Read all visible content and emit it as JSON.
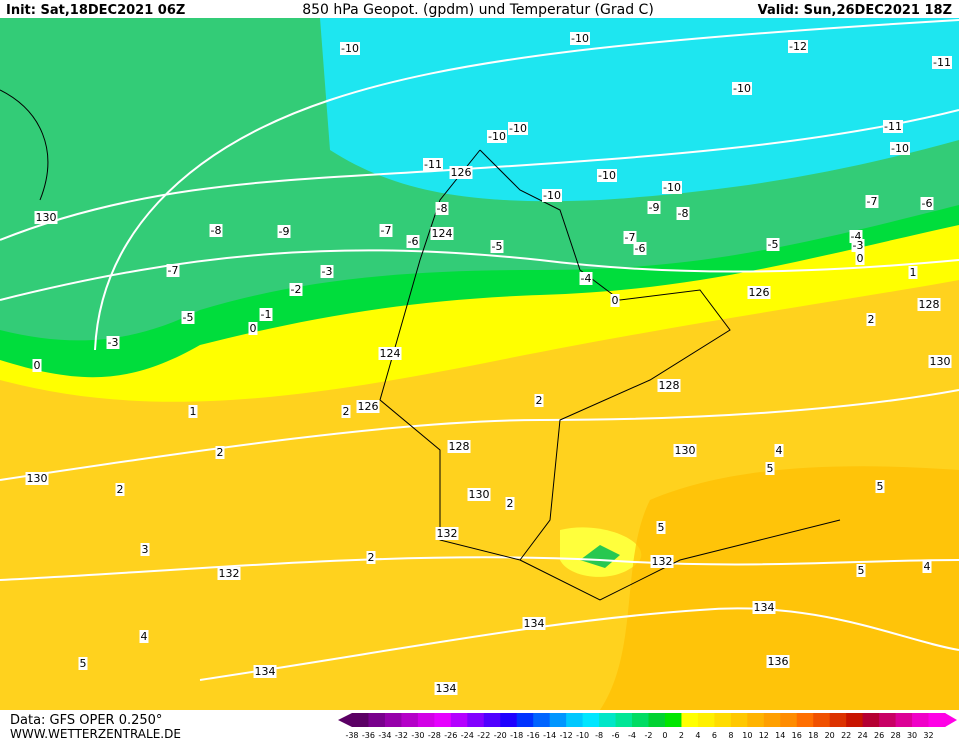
{
  "header": {
    "init": "Init: Sat,18DEC2021 06Z",
    "title": "850 hPa Geopot. (gpdm) und Temperatur (Grad C)",
    "valid": "Valid: Sun,26DEC2021 18Z"
  },
  "footer": {
    "data": "Data: GFS OPER 0.250°",
    "site": "WWW.WETTERZENTRALE.DE"
  },
  "contour_labels": [
    -10,
    -10,
    -12,
    -11,
    -10,
    -10,
    -10,
    -11,
    -10,
    -11,
    126,
    -10,
    -10,
    -10,
    -9,
    -8,
    -7,
    -6,
    130,
    -8,
    -9,
    -8,
    -7,
    -6,
    124,
    -5,
    -7,
    -6,
    -5,
    -4,
    -3,
    0,
    -7,
    -3,
    -4,
    1,
    -2,
    126,
    0,
    128,
    -1,
    -5,
    0,
    -3,
    2,
    124,
    0,
    130,
    128,
    1,
    2,
    126,
    2,
    128,
    2,
    130,
    4,
    5,
    130,
    2,
    130,
    2,
    5,
    132,
    5,
    3,
    2,
    132,
    132,
    5,
    4,
    134,
    134,
    4,
    5,
    134,
    136,
    134
  ],
  "colorbar": {
    "ticks": [
      -38,
      -36,
      -34,
      -32,
      -30,
      -28,
      -26,
      -24,
      -22,
      -20,
      -18,
      -16,
      -14,
      -12,
      -10,
      -8,
      -6,
      -4,
      -2,
      0,
      2,
      4,
      6,
      8,
      10,
      12,
      14,
      16,
      18,
      20,
      22,
      24,
      26,
      28,
      30,
      32
    ],
    "colors": [
      "#5a0064",
      "#78008c",
      "#9600aa",
      "#b400c8",
      "#d200e6",
      "#e600ff",
      "#b400ff",
      "#8200ff",
      "#5000ff",
      "#1e00ff",
      "#0032ff",
      "#0064ff",
      "#0096ff",
      "#00c8ff",
      "#00e6ff",
      "#00e6c8",
      "#00e696",
      "#00dc64",
      "#00d232",
      "#00e600",
      "#ffff00",
      "#fff000",
      "#ffdc00",
      "#ffc800",
      "#ffb400",
      "#ffa000",
      "#ff8c00",
      "#ff6e00",
      "#f05000",
      "#dc3200",
      "#c81400",
      "#b40032",
      "#c80064",
      "#dc0096",
      "#f000c8",
      "#ff00e6"
    ]
  }
}
